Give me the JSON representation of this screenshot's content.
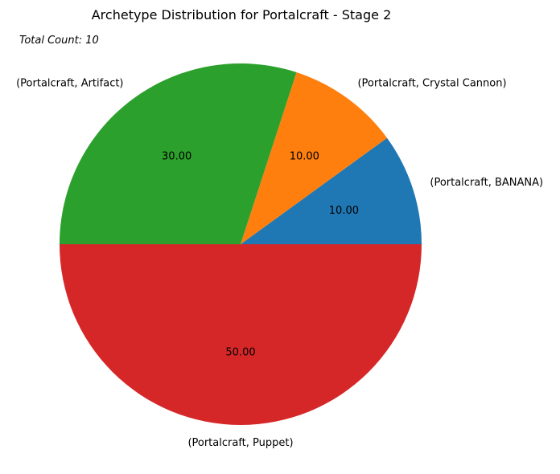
{
  "chart_data": {
    "type": "pie",
    "title": "Archetype Distribution for Portalcraft - Stage 2",
    "annotation": "Total Count: 10",
    "categories": [
      "(Portalcraft, BANANA)",
      "(Portalcraft, Crystal Cannon)",
      "(Portalcraft, Artifact)",
      "(Portalcraft, Puppet)"
    ],
    "values": [
      1,
      1,
      3,
      5
    ],
    "percent_labels": [
      "10.00",
      "10.00",
      "30.00",
      "50.00"
    ],
    "colors": [
      "#1f77b4",
      "#ff7f0e",
      "#2ca02c",
      "#d62728"
    ],
    "start_angle_deg": 0,
    "direction": "counterclockwise",
    "legend": "none"
  }
}
